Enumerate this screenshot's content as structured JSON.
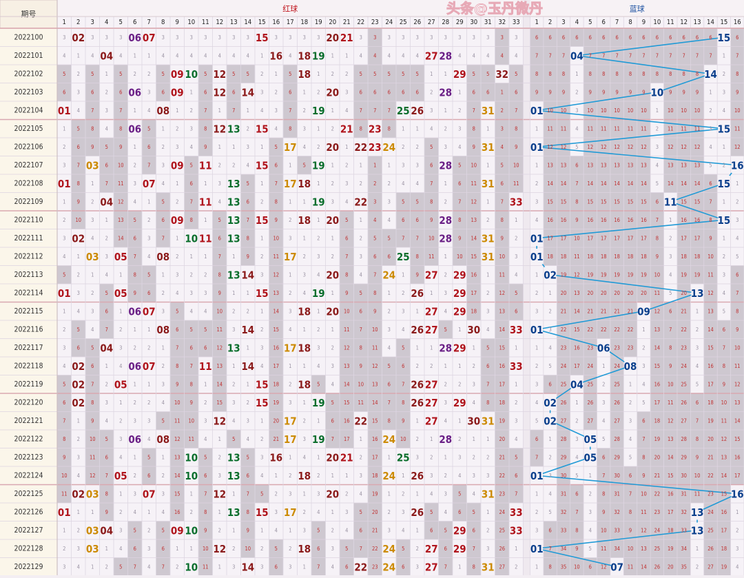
{
  "chart_data": {
    "type": "table",
    "title_left": "期号",
    "title_red": "红球",
    "title_blue": "蓝球",
    "watermark": "头条@玉丹微丹",
    "red_range": [
      1,
      33
    ],
    "blue_range": [
      1,
      16
    ],
    "colors": {
      "red_text": "#b0141c",
      "dark_red": "#8b1a1a",
      "green": "#0a6e2c",
      "orange": "#cc8a00",
      "purple": "#6a1f86",
      "blue_text": "#0a3f8c",
      "blue_line": "#1f9ad6",
      "miss_col": "#c7c1c9",
      "missing_text": "#c03030"
    },
    "draws": [
      {
        "period": "2022100",
        "red": [
          2,
          6,
          7,
          15,
          20,
          21
        ],
        "blue": 15
      },
      {
        "period": "2022101",
        "red": [
          4,
          16,
          18,
          19,
          27,
          28
        ],
        "blue": 4
      },
      {
        "period": "2022102",
        "red": [
          9,
          10,
          12,
          18,
          29,
          32
        ],
        "blue": 14
      },
      {
        "period": "2022103",
        "red": [
          6,
          9,
          12,
          14,
          20,
          28
        ],
        "blue": 10
      },
      {
        "period": "2022104",
        "red": [
          1,
          8,
          19,
          25,
          26,
          31
        ],
        "blue": 1
      },
      {
        "period": "2022105",
        "red": [
          6,
          12,
          13,
          15,
          21,
          23
        ],
        "blue": 15
      },
      {
        "period": "2022106",
        "red": [
          17,
          20,
          22,
          23,
          24,
          31
        ],
        "blue": 1
      },
      {
        "period": "2022107",
        "red": [
          3,
          9,
          11,
          15,
          19,
          28
        ],
        "blue": 16
      },
      {
        "period": "2022108",
        "red": [
          1,
          7,
          13,
          17,
          18,
          31
        ],
        "blue": 15
      },
      {
        "period": "2022109",
        "red": [
          4,
          11,
          13,
          19,
          22,
          33
        ],
        "blue": 11
      },
      {
        "period": "2022110",
        "red": [
          9,
          13,
          15,
          18,
          20,
          28
        ],
        "blue": 15
      },
      {
        "period": "2022111",
        "red": [
          2,
          10,
          11,
          13,
          28,
          31
        ],
        "blue": 1
      },
      {
        "period": "2022112",
        "red": [
          3,
          5,
          8,
          17,
          25,
          31
        ],
        "blue": 1
      },
      {
        "period": "2022113",
        "red": [
          13,
          14,
          20,
          24,
          27,
          29
        ],
        "blue": 2
      },
      {
        "period": "2022114",
        "red": [
          1,
          5,
          15,
          19,
          26,
          29
        ],
        "blue": 13
      },
      {
        "period": "2022115",
        "red": [
          6,
          7,
          18,
          20,
          27,
          29
        ],
        "blue": 9
      },
      {
        "period": "2022116",
        "red": [
          8,
          14,
          26,
          27,
          30,
          33
        ],
        "blue": 1
      },
      {
        "period": "2022117",
        "red": [
          4,
          13,
          17,
          18,
          28,
          29
        ],
        "blue": 6
      },
      {
        "period": "2022118",
        "red": [
          2,
          6,
          7,
          11,
          14,
          33
        ],
        "blue": 8
      },
      {
        "period": "2022119",
        "red": [
          2,
          5,
          15,
          18,
          26,
          27
        ],
        "blue": 4
      },
      {
        "period": "2022120",
        "red": [
          2,
          15,
          19,
          26,
          27,
          29
        ],
        "blue": 2
      },
      {
        "period": "2022121",
        "red": [
          12,
          17,
          22,
          27,
          30,
          31
        ],
        "blue": 2
      },
      {
        "period": "2022122",
        "red": [
          6,
          8,
          17,
          19,
          24,
          28
        ],
        "blue": 5
      },
      {
        "period": "2022123",
        "red": [
          10,
          13,
          16,
          20,
          21,
          25
        ],
        "blue": 5
      },
      {
        "period": "2022124",
        "red": [
          5,
          10,
          13,
          18,
          24,
          26
        ],
        "blue": 1
      },
      {
        "period": "2022125",
        "red": [
          2,
          3,
          7,
          12,
          20,
          31
        ],
        "blue": 16
      },
      {
        "period": "2022126",
        "red": [
          1,
          13,
          15,
          17,
          26,
          33
        ],
        "blue": 13
      },
      {
        "period": "2022127",
        "red": [
          3,
          4,
          9,
          10,
          29,
          33
        ],
        "blue": 13
      },
      {
        "period": "2022128",
        "red": [
          3,
          12,
          18,
          24,
          27,
          29
        ],
        "blue": 1
      },
      {
        "period": "2022129",
        "red": [
          10,
          14,
          22,
          24,
          27,
          31
        ],
        "blue": 7
      }
    ]
  }
}
